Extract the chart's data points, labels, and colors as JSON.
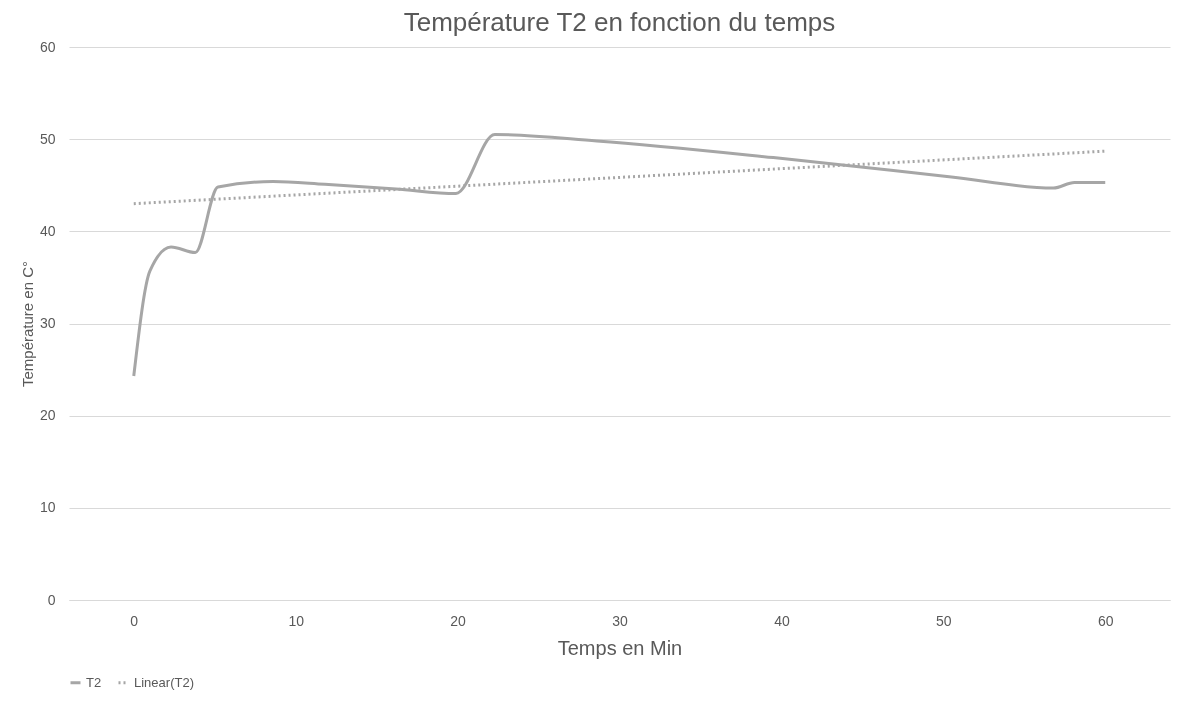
{
  "chart_data": {
    "type": "line",
    "title": "Température T2 en fonction du temps",
    "xlabel": "Temps en Min",
    "ylabel": "Température en C°",
    "xlim": [
      -4,
      64
    ],
    "xticks": [
      0,
      10,
      20,
      30,
      40,
      50,
      60
    ],
    "ylim": [
      0,
      60
    ],
    "yticks": [
      0,
      10,
      20,
      30,
      40,
      50,
      60
    ],
    "grid": "y",
    "legend": "bottom",
    "marker": "none",
    "series": [
      {
        "name": "T2",
        "color": "#a6a6a6",
        "line_style": "solid",
        "x": [
          0,
          1,
          2.3,
          3.8,
          5.2,
          8.6,
          11.8,
          16.2,
          19.9,
          22.3,
          28.6,
          39.5,
          50.5,
          56.8,
          58.1,
          60
        ],
        "values": [
          24.3,
          35.7,
          38.3,
          37.7,
          44.8,
          45.4,
          45.1,
          44.6,
          44.1,
          50.5,
          49.8,
          48.0,
          45.9,
          44.7,
          45.3,
          45.3
        ]
      },
      {
        "name": "Linear(T2)",
        "type": "line",
        "color": "#a6a6a6",
        "line_style": "dotted",
        "x": [
          0,
          60
        ],
        "values": [
          43.0,
          48.7
        ]
      }
    ]
  }
}
